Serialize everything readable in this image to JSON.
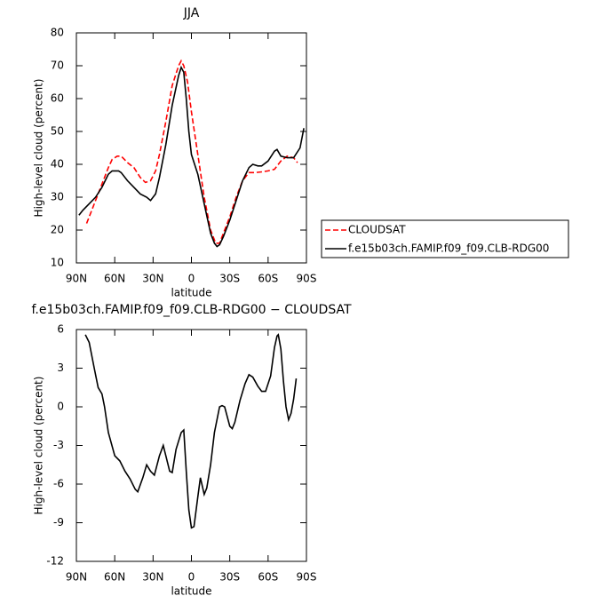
{
  "chart_data": [
    {
      "type": "line",
      "title": "JJA",
      "xlabel": "latitude",
      "ylabel": "High-level cloud (percent)",
      "xlim": [
        90,
        -90
      ],
      "xticks": [
        {
          "value": 90,
          "label": "90N"
        },
        {
          "value": 60,
          "label": "60N"
        },
        {
          "value": 30,
          "label": "30N"
        },
        0,
        {
          "value": -30,
          "label": "30S"
        },
        {
          "value": -60,
          "label": "60S"
        },
        {
          "value": -90,
          "label": "90S"
        }
      ],
      "ylim": [
        10,
        80
      ],
      "yticks": [
        10,
        20,
        30,
        40,
        50,
        60,
        70,
        80
      ],
      "legend": "right",
      "series": [
        {
          "name": "CLOUDSAT",
          "color": "#ff0000",
          "style": "dashed",
          "x": [
            82,
            78,
            75,
            70,
            65,
            62,
            58,
            55,
            50,
            45,
            40,
            36,
            32,
            28,
            25,
            20,
            15,
            10,
            8,
            6,
            3,
            0,
            -5,
            -10,
            -15,
            -19,
            -22,
            -25,
            -30,
            -35,
            -40,
            -45,
            -50,
            -55,
            -60,
            -65,
            -70,
            -75,
            -80,
            -83
          ],
          "values": [
            22,
            26,
            29,
            34,
            39,
            41.5,
            42.5,
            42.5,
            40.5,
            39,
            36,
            34.5,
            35,
            38,
            43,
            53,
            64,
            70,
            71.5,
            70,
            65,
            56,
            43,
            30,
            20,
            16,
            16,
            19,
            24,
            30,
            35,
            37.5,
            37.5,
            37.7,
            38,
            38.5,
            41,
            42.5,
            42,
            40.5
          ]
        },
        {
          "name": "f.e15b03ch.FAMIP.f09_f09.CLB-RDG00",
          "color": "#000000",
          "style": "solid",
          "x": [
            88,
            85,
            80,
            75,
            70,
            65,
            62,
            57,
            55,
            50,
            45,
            40,
            35,
            32,
            28,
            25,
            20,
            15,
            10,
            8,
            6,
            4,
            2,
            0,
            -5,
            -10,
            -15,
            -18,
            -20,
            -22,
            -25,
            -30,
            -35,
            -40,
            -45,
            -48,
            -52,
            -55,
            -60,
            -65,
            -67,
            -70,
            -75,
            -80,
            -85,
            -88
          ],
          "values": [
            24.5,
            26,
            28,
            30,
            33,
            37,
            38,
            38,
            37.5,
            35,
            33,
            31,
            30,
            29,
            31,
            36,
            46,
            58,
            67,
            69.5,
            68,
            60,
            50,
            43,
            37,
            28,
            19,
            16,
            15,
            15.5,
            18,
            23,
            29,
            35,
            39,
            40,
            39.5,
            39.5,
            41,
            44,
            44.5,
            42.5,
            42,
            42,
            45,
            51
          ]
        }
      ]
    },
    {
      "type": "line",
      "title": "f.e15b03ch.FAMIP.f09_f09.CLB-RDG00 − CLOUDSAT",
      "xlabel": "latitude",
      "ylabel": "High-level cloud (percent)",
      "xlim": [
        90,
        -90
      ],
      "xticks": [
        {
          "value": 90,
          "label": "90N"
        },
        {
          "value": 60,
          "label": "60N"
        },
        {
          "value": 30,
          "label": "30N"
        },
        0,
        {
          "value": -30,
          "label": "30S"
        },
        {
          "value": -60,
          "label": "60S"
        },
        {
          "value": -90,
          "label": "90S"
        }
      ],
      "ylim": [
        -12,
        6
      ],
      "yticks": [
        -12,
        -9,
        -6,
        -3,
        0,
        3,
        6
      ],
      "series": [
        {
          "color": "#000000",
          "style": "solid",
          "x": [
            83,
            80,
            76,
            73,
            70,
            68,
            65,
            60,
            56,
            52,
            48,
            44,
            42,
            38,
            35,
            32,
            29,
            25,
            22,
            20,
            17,
            15,
            12,
            8,
            6,
            4,
            2,
            0,
            -2,
            -5,
            -7,
            -10,
            -12,
            -15,
            -18,
            -22,
            -24,
            -26,
            -30,
            -32,
            -34,
            -38,
            -42,
            -45,
            -48,
            -52,
            -55,
            -58,
            -62,
            -65,
            -67,
            -68,
            -70,
            -72,
            -74,
            -76,
            -78,
            -80,
            -82
          ],
          "values": [
            5.6,
            5,
            3,
            1.5,
            1,
            0,
            -2,
            -3.8,
            -4.2,
            -5,
            -5.6,
            -6.4,
            -6.6,
            -5.5,
            -4.5,
            -5,
            -5.3,
            -3.8,
            -3,
            -3.8,
            -5,
            -5.1,
            -3.3,
            -2,
            -1.8,
            -5,
            -8,
            -9.4,
            -9.3,
            -7,
            -5.5,
            -6.8,
            -6.3,
            -4.5,
            -2,
            0,
            0.1,
            0,
            -1.5,
            -1.7,
            -1.2,
            0.5,
            1.8,
            2.5,
            2.3,
            1.6,
            1.2,
            1.2,
            2.4,
            4.6,
            5.5,
            5.6,
            4.5,
            2,
            0,
            -1,
            -0.5,
            0.6,
            2.2
          ]
        }
      ]
    }
  ]
}
